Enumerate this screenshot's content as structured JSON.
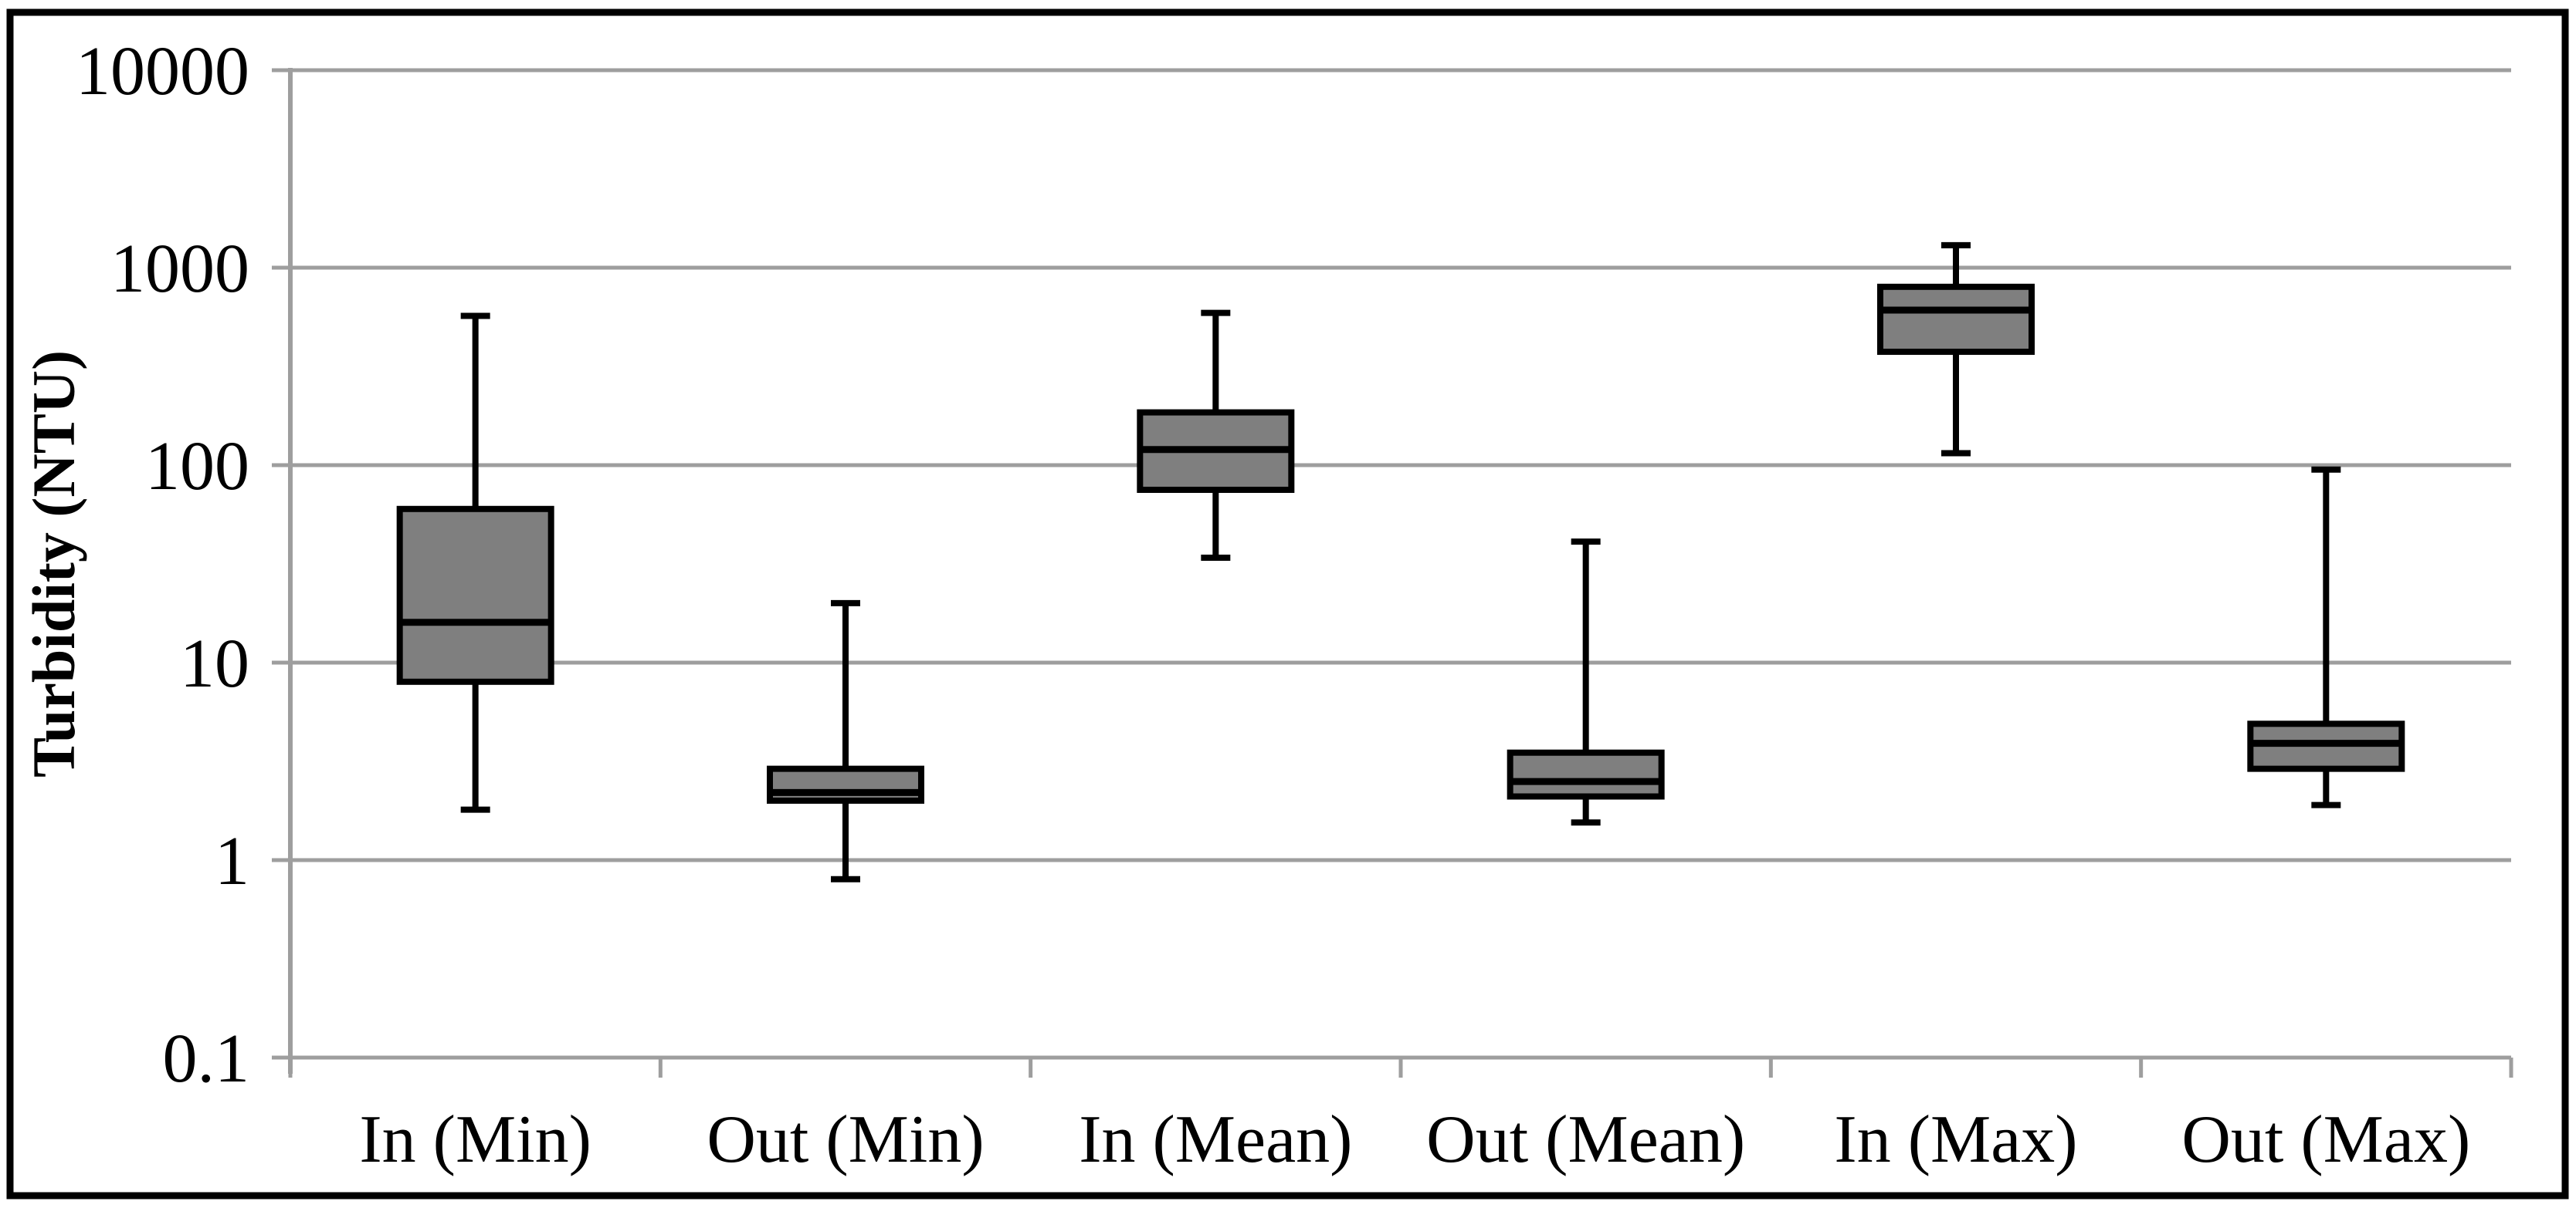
{
  "chart_data": {
    "type": "box",
    "title": "",
    "ylabel": "Turbidity (NTU)",
    "xlabel": "",
    "yscale": "log",
    "ylim": [
      0.1,
      10000
    ],
    "grid": true,
    "legend_position": "none",
    "yticks": [
      {
        "label": "10000",
        "value": 10000
      },
      {
        "label": "1000",
        "value": 1000
      },
      {
        "label": "100",
        "value": 100
      },
      {
        "label": "10",
        "value": 10
      },
      {
        "label": "1",
        "value": 1
      },
      {
        "label": "0.1",
        "value": 0.1
      }
    ],
    "categories": [
      "In (Min)",
      "Out (Min)",
      "In (Mean)",
      "Out (Mean)",
      "In (Max)",
      "Out (Max)"
    ],
    "series": [
      {
        "category": "In (Min)",
        "whisker_low": 1.8,
        "q1": 8,
        "median": 16,
        "q3": 60,
        "whisker_high": 570
      },
      {
        "category": "Out (Min)",
        "whisker_low": 0.8,
        "q1": 2.0,
        "median": 2.2,
        "q3": 2.9,
        "whisker_high": 20
      },
      {
        "category": "In (Mean)",
        "whisker_low": 34,
        "q1": 75,
        "median": 120,
        "q3": 185,
        "whisker_high": 590
      },
      {
        "category": "Out (Mean)",
        "whisker_low": 1.55,
        "q1": 2.1,
        "median": 2.5,
        "q3": 3.5,
        "whisker_high": 41
      },
      {
        "category": "In (Max)",
        "whisker_low": 115,
        "q1": 375,
        "median": 610,
        "q3": 800,
        "whisker_high": 1300
      },
      {
        "category": "Out (Max)",
        "whisker_low": 1.9,
        "q1": 2.9,
        "median": 3.9,
        "q3": 4.9,
        "whisker_high": 95
      }
    ],
    "colors": {
      "box_fill": "#7F7F7F",
      "box_border": "#000000",
      "whisker": "#000000",
      "median": "#000000",
      "gridline": "#9E9E9E",
      "axis": "#9E9E9E",
      "text": "#000000",
      "frame": "#000000",
      "background": "#FFFFFF"
    }
  }
}
